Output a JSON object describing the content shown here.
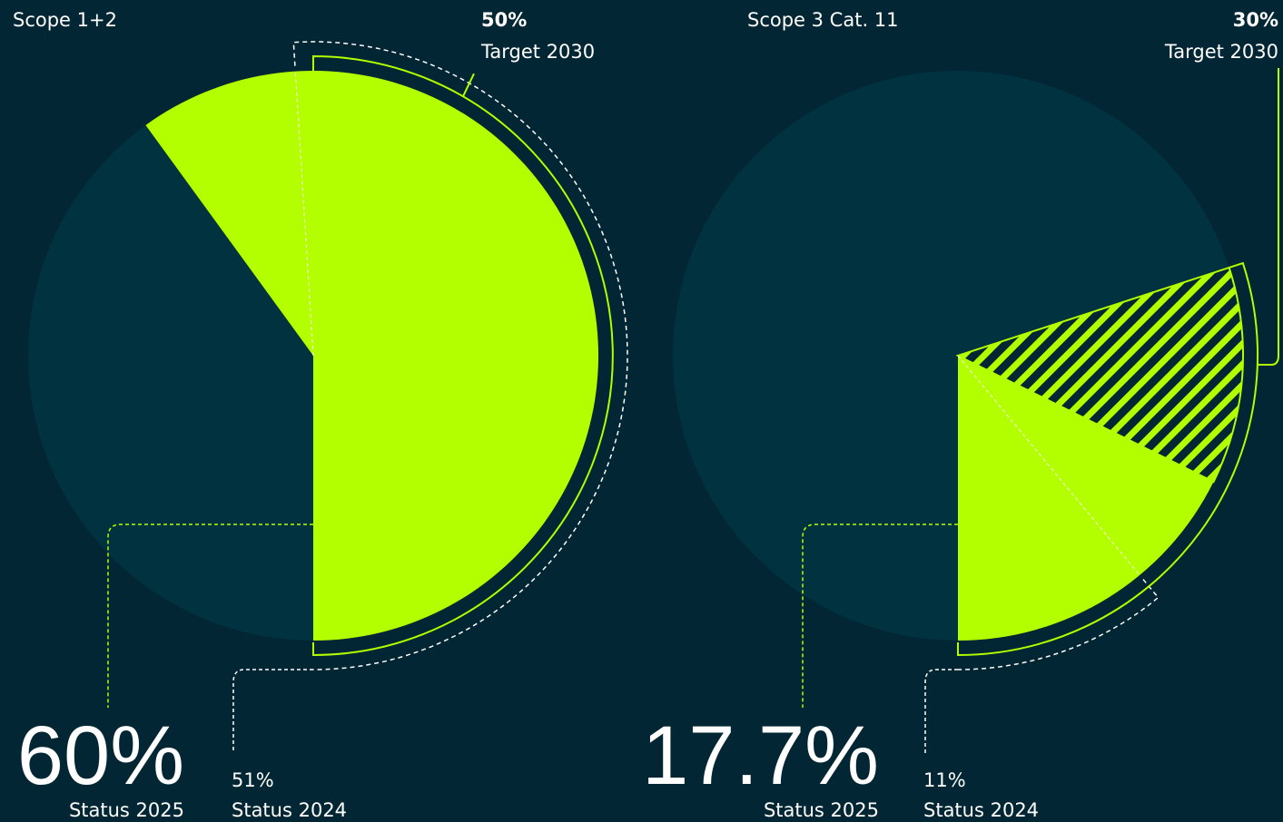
{
  "chart_data": [
    {
      "type": "pie",
      "title": "Scope 1+2",
      "categories": [
        "Status 2025",
        "Status 2024",
        "Target 2030"
      ],
      "values": [
        60,
        51,
        50
      ],
      "value_labels": [
        "60%",
        "51%",
        "50%"
      ],
      "color": "#b3ff00"
    },
    {
      "type": "pie",
      "title": "Scope 3 Cat. 11",
      "categories": [
        "Status 2025",
        "Status 2024",
        "Target 2030"
      ],
      "values": [
        17.7,
        11,
        30
      ],
      "value_labels": [
        "17.7%",
        "11%",
        "30%"
      ],
      "color": "#b3ff00"
    }
  ]
}
